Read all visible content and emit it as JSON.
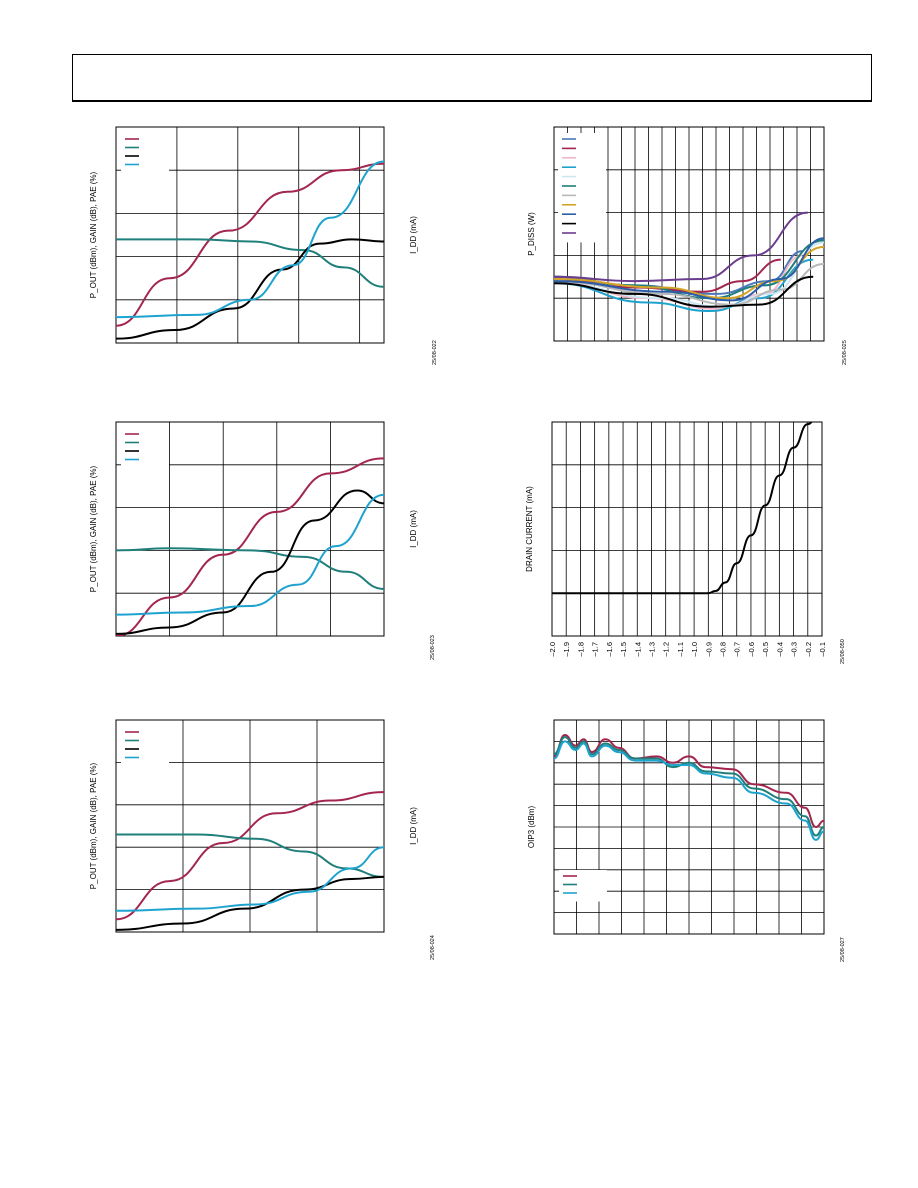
{
  "page": {
    "colors": {
      "maroon": "#a3264e",
      "teal": "#1f7f7a",
      "black": "#000000",
      "cyan": "#1ea3cf",
      "grid": "#000000"
    }
  },
  "chart_data": [
    {
      "id": "c1",
      "type": "line",
      "ylabel_left": "P_OUT (dBm), GAIN (dB), PAE (%)",
      "ylabel_right": "I_DD (mA)",
      "fig_id": "25/08-022",
      "grid": true,
      "grid_cols": 4.4,
      "grid_rows": 5,
      "legend_entries": 4,
      "legend_position": "top-left",
      "series": [
        {
          "color": "maroon",
          "points": [
            [
              0,
              0.08
            ],
            [
              0.2,
              0.3
            ],
            [
              0.42,
              0.52
            ],
            [
              0.64,
              0.7
            ],
            [
              0.84,
              0.8
            ],
            [
              1,
              0.83
            ]
          ]
        },
        {
          "color": "teal",
          "points": [
            [
              0,
              0.48
            ],
            [
              0.3,
              0.48
            ],
            [
              0.5,
              0.47
            ],
            [
              0.7,
              0.43
            ],
            [
              0.85,
              0.35
            ],
            [
              1,
              0.26
            ]
          ]
        },
        {
          "color": "black",
          "points": [
            [
              0,
              0.02
            ],
            [
              0.22,
              0.06
            ],
            [
              0.44,
              0.16
            ],
            [
              0.62,
              0.34
            ],
            [
              0.76,
              0.46
            ],
            [
              0.88,
              0.48
            ],
            [
              1,
              0.47
            ]
          ]
        },
        {
          "color": "cyan",
          "points": [
            [
              0,
              0.12
            ],
            [
              0.3,
              0.13
            ],
            [
              0.5,
              0.2
            ],
            [
              0.66,
              0.36
            ],
            [
              0.8,
              0.58
            ],
            [
              1,
              0.84
            ]
          ]
        }
      ]
    },
    {
      "id": "c2",
      "type": "line",
      "ylabel_left": "P_DISS (W)",
      "fig_id": "25/08-025",
      "grid": true,
      "grid_cols": 20,
      "grid_rows": 5,
      "legend_entries": 11,
      "legend_position": "top-left",
      "series": [
        {
          "color": "#4a78b8",
          "points": [
            [
              0,
              0.3
            ],
            [
              0.3,
              0.26
            ],
            [
              0.6,
              0.22
            ],
            [
              0.8,
              0.28
            ],
            [
              0.92,
              0.42
            ]
          ]
        },
        {
          "color": "maroon",
          "points": [
            [
              0,
              0.29
            ],
            [
              0.3,
              0.25
            ],
            [
              0.55,
              0.23
            ],
            [
              0.7,
              0.28
            ],
            [
              0.84,
              0.38
            ]
          ]
        },
        {
          "color": "#f0b8c8",
          "points": [
            [
              0,
              0.28
            ],
            [
              0.35,
              0.2
            ],
            [
              0.6,
              0.15
            ],
            [
              0.78,
              0.22
            ],
            [
              0.92,
              0.4
            ]
          ]
        },
        {
          "color": "cyan",
          "points": [
            [
              0,
              0.27
            ],
            [
              0.35,
              0.18
            ],
            [
              0.58,
              0.14
            ],
            [
              0.76,
              0.2
            ],
            [
              0.96,
              0.38
            ]
          ]
        },
        {
          "color": "#cde6f2",
          "points": [
            [
              0,
              0.27
            ],
            [
              0.4,
              0.2
            ],
            [
              0.62,
              0.16
            ],
            [
              0.8,
              0.22
            ],
            [
              1,
              0.46
            ]
          ]
        },
        {
          "color": "teal",
          "points": [
            [
              0,
              0.3
            ],
            [
              0.3,
              0.26
            ],
            [
              0.58,
              0.2
            ],
            [
              0.78,
              0.26
            ],
            [
              1,
              0.47
            ]
          ]
        },
        {
          "color": "#b8b8b8",
          "points": [
            [
              0,
              0.28
            ],
            [
              0.4,
              0.22
            ],
            [
              0.66,
              0.17
            ],
            [
              0.84,
              0.24
            ],
            [
              1,
              0.36
            ]
          ]
        },
        {
          "color": "#d4a32a",
          "points": [
            [
              0,
              0.29
            ],
            [
              0.4,
              0.25
            ],
            [
              0.64,
              0.2
            ],
            [
              0.82,
              0.28
            ],
            [
              1,
              0.44
            ]
          ]
        },
        {
          "color": "#2a5ea8",
          "points": [
            [
              0,
              0.28
            ],
            [
              0.42,
              0.23
            ],
            [
              0.66,
              0.19
            ],
            [
              0.84,
              0.29
            ],
            [
              1,
              0.48
            ]
          ]
        },
        {
          "color": "black",
          "points": [
            [
              0,
              0.27
            ],
            [
              0.3,
              0.22
            ],
            [
              0.58,
              0.16
            ],
            [
              0.76,
              0.17
            ],
            [
              0.96,
              0.3
            ]
          ]
        },
        {
          "color": "#6a3d8f",
          "points": [
            [
              0,
              0.3
            ],
            [
              0.3,
              0.28
            ],
            [
              0.55,
              0.29
            ],
            [
              0.74,
              0.4
            ],
            [
              0.94,
              0.6
            ]
          ]
        }
      ]
    },
    {
      "id": "c3",
      "type": "line",
      "ylabel_left": "P_OUT (dBm), GAIN (dB), PAE (%)",
      "ylabel_right": "I_DD (mA)",
      "fig_id": "25/08-023",
      "grid": true,
      "grid_cols": 5,
      "grid_rows": 5,
      "legend_entries": 4,
      "legend_position": "top-left",
      "series": [
        {
          "color": "maroon",
          "points": [
            [
              0,
              0.0
            ],
            [
              0.2,
              0.18
            ],
            [
              0.4,
              0.38
            ],
            [
              0.6,
              0.58
            ],
            [
              0.8,
              0.76
            ],
            [
              1,
              0.83
            ]
          ]
        },
        {
          "color": "teal",
          "points": [
            [
              0,
              0.4
            ],
            [
              0.2,
              0.41
            ],
            [
              0.5,
              0.4
            ],
            [
              0.7,
              0.37
            ],
            [
              0.86,
              0.3
            ],
            [
              1,
              0.22
            ]
          ]
        },
        {
          "color": "black",
          "points": [
            [
              0,
              0.01
            ],
            [
              0.2,
              0.04
            ],
            [
              0.4,
              0.11
            ],
            [
              0.58,
              0.3
            ],
            [
              0.74,
              0.54
            ],
            [
              0.9,
              0.68
            ],
            [
              1,
              0.62
            ]
          ]
        },
        {
          "color": "cyan",
          "points": [
            [
              0,
              0.1
            ],
            [
              0.25,
              0.11
            ],
            [
              0.5,
              0.14
            ],
            [
              0.68,
              0.24
            ],
            [
              0.82,
              0.42
            ],
            [
              1,
              0.66
            ]
          ]
        }
      ]
    },
    {
      "id": "c4",
      "type": "line",
      "ylabel_left": "DRAIN CURRENT (mA)",
      "fig_id": "25/08-050",
      "xticks": [
        "–2.0",
        "–1.9",
        "–1.8",
        "–1.7",
        "–1.6",
        "–1.5",
        "–1.4",
        "–1.3",
        "–1.2",
        "–1.1",
        "–1.0",
        "–0.9",
        "–0.8",
        "–0.7",
        "–0.6",
        "–0.5",
        "–0.4",
        "–0.3",
        "–0.2",
        "–0.1"
      ],
      "xlim": [
        -2.0,
        -0.1
      ],
      "grid": true,
      "grid_cols": 19,
      "grid_rows": 5,
      "series": [
        {
          "color": "black",
          "points": [
            [
              -2.0,
              0.2
            ],
            [
              -1.0,
              0.2
            ],
            [
              -0.9,
              0.2
            ],
            [
              -0.85,
              0.21
            ],
            [
              -0.78,
              0.25
            ],
            [
              -0.7,
              0.34
            ],
            [
              -0.6,
              0.47
            ],
            [
              -0.5,
              0.61
            ],
            [
              -0.4,
              0.75
            ],
            [
              -0.3,
              0.88
            ],
            [
              -0.2,
              0.99
            ],
            [
              -0.1,
              1.08
            ]
          ]
        }
      ]
    },
    {
      "id": "c5",
      "type": "line",
      "ylabel_left": "P_OUT (dBm), GAIN (dB), PAE (%)",
      "ylabel_right": "I_DD (mA)",
      "fig_id": "25/08-024",
      "grid": true,
      "grid_cols": 4,
      "grid_rows": 5,
      "legend_entries": 4,
      "legend_position": "top-left",
      "series": [
        {
          "color": "maroon",
          "points": [
            [
              0,
              0.06
            ],
            [
              0.2,
              0.24
            ],
            [
              0.4,
              0.42
            ],
            [
              0.6,
              0.56
            ],
            [
              0.8,
              0.62
            ],
            [
              1,
              0.66
            ]
          ]
        },
        {
          "color": "teal",
          "points": [
            [
              0,
              0.46
            ],
            [
              0.3,
              0.46
            ],
            [
              0.52,
              0.44
            ],
            [
              0.7,
              0.38
            ],
            [
              0.86,
              0.3
            ],
            [
              1,
              0.26
            ]
          ]
        },
        {
          "color": "black",
          "points": [
            [
              0,
              0.01
            ],
            [
              0.25,
              0.04
            ],
            [
              0.48,
              0.11
            ],
            [
              0.7,
              0.2
            ],
            [
              0.88,
              0.25
            ],
            [
              1,
              0.26
            ]
          ]
        },
        {
          "color": "cyan",
          "points": [
            [
              0,
              0.1
            ],
            [
              0.3,
              0.11
            ],
            [
              0.52,
              0.13
            ],
            [
              0.72,
              0.19
            ],
            [
              0.88,
              0.3
            ],
            [
              1,
              0.4
            ]
          ]
        }
      ]
    },
    {
      "id": "c6",
      "type": "line",
      "ylabel_left": "OIP3 (dBm)",
      "fig_id": "25/08-027",
      "grid": true,
      "grid_cols": 12,
      "grid_rows": 10,
      "legend_entries": 3,
      "legend_position": "bottom-left",
      "series": [
        {
          "color": "maroon",
          "points": [
            [
              0,
              0.83
            ],
            [
              0.04,
              0.93
            ],
            [
              0.08,
              0.88
            ],
            [
              0.11,
              0.91
            ],
            [
              0.14,
              0.85
            ],
            [
              0.19,
              0.91
            ],
            [
              0.24,
              0.87
            ],
            [
              0.3,
              0.82
            ],
            [
              0.38,
              0.83
            ],
            [
              0.44,
              0.8
            ],
            [
              0.5,
              0.83
            ],
            [
              0.56,
              0.78
            ],
            [
              0.66,
              0.77
            ],
            [
              0.74,
              0.7
            ],
            [
              0.86,
              0.66
            ],
            [
              0.93,
              0.59
            ],
            [
              0.97,
              0.5
            ],
            [
              1,
              0.53
            ]
          ]
        },
        {
          "color": "teal",
          "points": [
            [
              0,
              0.84
            ],
            [
              0.04,
              0.92
            ],
            [
              0.08,
              0.87
            ],
            [
              0.11,
              0.9
            ],
            [
              0.14,
              0.84
            ],
            [
              0.19,
              0.89
            ],
            [
              0.24,
              0.86
            ],
            [
              0.3,
              0.82
            ],
            [
              0.38,
              0.82
            ],
            [
              0.44,
              0.78
            ],
            [
              0.5,
              0.8
            ],
            [
              0.56,
              0.76
            ],
            [
              0.66,
              0.75
            ],
            [
              0.74,
              0.68
            ],
            [
              0.86,
              0.63
            ],
            [
              0.93,
              0.55
            ],
            [
              0.97,
              0.46
            ],
            [
              1,
              0.5
            ]
          ]
        },
        {
          "color": "cyan",
          "points": [
            [
              0,
              0.82
            ],
            [
              0.04,
              0.9
            ],
            [
              0.08,
              0.86
            ],
            [
              0.11,
              0.89
            ],
            [
              0.14,
              0.83
            ],
            [
              0.19,
              0.88
            ],
            [
              0.24,
              0.85
            ],
            [
              0.3,
              0.81
            ],
            [
              0.38,
              0.81
            ],
            [
              0.44,
              0.79
            ],
            [
              0.5,
              0.79
            ],
            [
              0.56,
              0.75
            ],
            [
              0.66,
              0.73
            ],
            [
              0.74,
              0.66
            ],
            [
              0.86,
              0.61
            ],
            [
              0.93,
              0.53
            ],
            [
              0.97,
              0.44
            ],
            [
              1,
              0.48
            ]
          ]
        }
      ]
    }
  ]
}
